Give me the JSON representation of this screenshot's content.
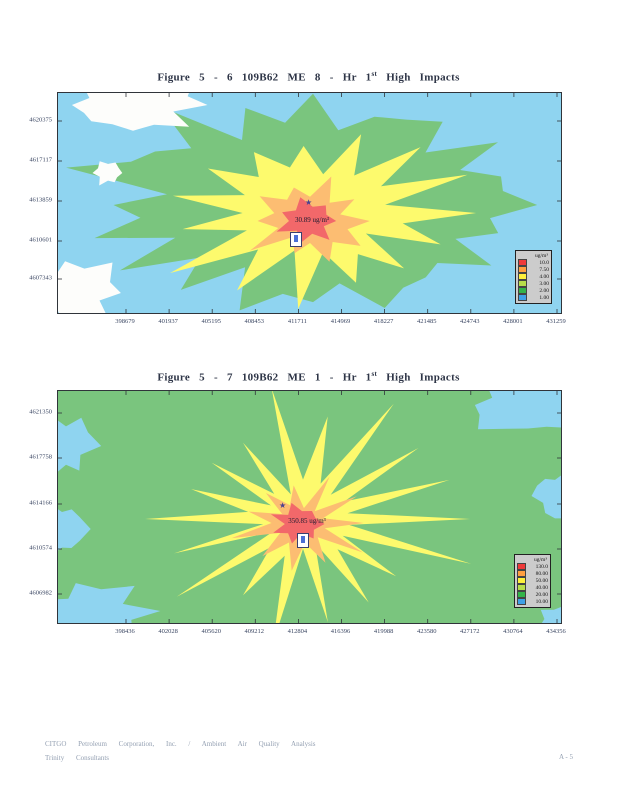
{
  "figure1": {
    "title_prefix": "Figure 5 - 6 109B62 ME 8 - Hr 1",
    "title_sup": "st",
    "title_suffix": "High Impacts",
    "y_ticks": [
      "4620375",
      "4617117",
      "4613859",
      "4610601",
      "4607343"
    ],
    "x_ticks": [
      "398679",
      "401937",
      "405195",
      "408453",
      "411711",
      "414969",
      "418227",
      "421485",
      "424743",
      "428001",
      "431259"
    ],
    "annotation": "30.89 ug/m³",
    "legend": {
      "title": "ug/m³",
      "entries": [
        {
          "label": "10.0",
          "color": "#ee3a3a"
        },
        {
          "label": "7.50",
          "color": "#ff9f40"
        },
        {
          "label": "4.00",
          "color": "#fef03c"
        },
        {
          "label": "3.00",
          "color": "#b8dd4b"
        },
        {
          "label": "2.00",
          "color": "#33b34a"
        },
        {
          "label": "1.00",
          "color": "#3ea0e6"
        }
      ]
    }
  },
  "figure2": {
    "title_prefix": "Figure 5 - 7 109B62 ME 1 - Hr 1",
    "title_sup": "st",
    "title_suffix": "High Impacts",
    "y_ticks": [
      "4621350",
      "4617758",
      "4614166",
      "4610574",
      "4606982"
    ],
    "x_ticks": [
      "398436",
      "402028",
      "405620",
      "409212",
      "412804",
      "416396",
      "419988",
      "423580",
      "427172",
      "430764",
      "434356"
    ],
    "annotation": "350.85 ug/m³",
    "legend": {
      "title": "ug/m³",
      "entries": [
        {
          "label": "130.0",
          "color": "#ee3a3a"
        },
        {
          "label": "80.00",
          "color": "#ff9f40"
        },
        {
          "label": "50.00",
          "color": "#fef03c"
        },
        {
          "label": "40.00",
          "color": "#b8dd4b"
        },
        {
          "label": "20.00",
          "color": "#33b34a"
        },
        {
          "label": "10.00",
          "color": "#3ea0e6"
        }
      ]
    }
  },
  "footer": {
    "line1": "CITGO Petroleum Corporation, Inc. / Ambient Air Quality Analysis",
    "line2": "Trinity Consultants",
    "page_number": "A - 5"
  },
  "colors": {
    "water": "#8fd4f0",
    "land_green": "#7ac57e",
    "level_yellow": "#fdfa6d",
    "level_orange": "#fcbd72",
    "level_red": "#f2686a",
    "white_patch": "#fdfdfb"
  }
}
